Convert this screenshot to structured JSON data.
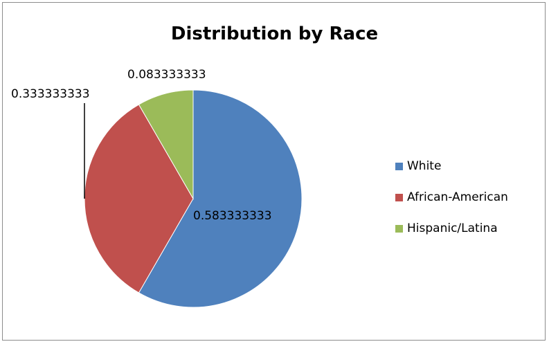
{
  "chart_data": {
    "type": "pie",
    "title": "Distribution by Race",
    "categories": [
      "White",
      "African-American",
      "Hispanic/Latina"
    ],
    "values": [
      0.583333333,
      0.333333333,
      0.083333333
    ],
    "data_labels": [
      "0.583333333",
      "0.333333333",
      "0.083333333"
    ],
    "colors": [
      "#4f81bd",
      "#c0504d",
      "#9bbb59"
    ],
    "legend_position": "right"
  }
}
